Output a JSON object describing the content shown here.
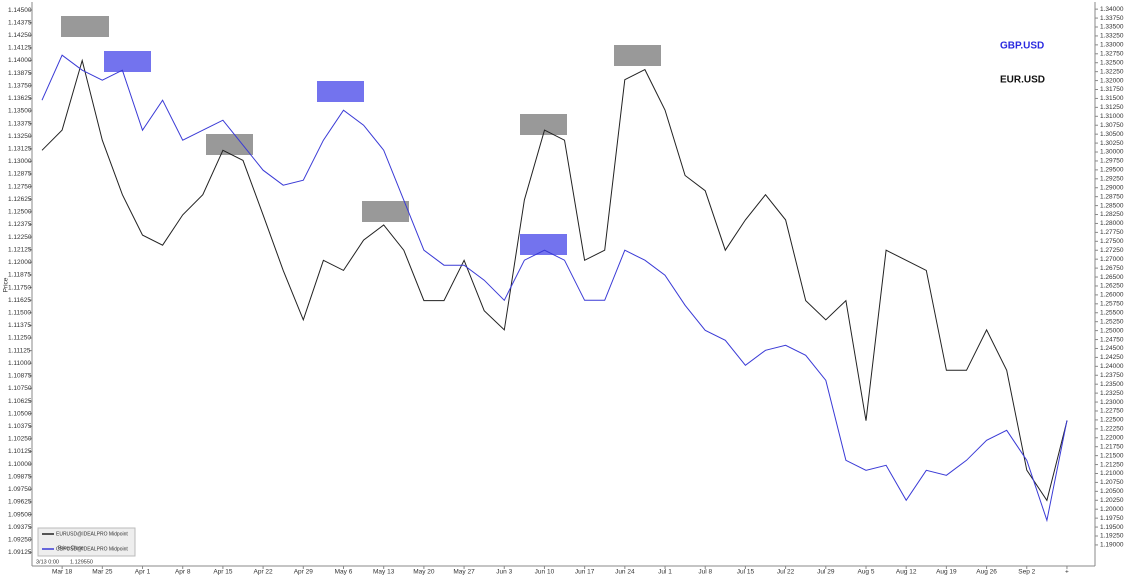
{
  "chart_data": {
    "type": "line",
    "annotations": [
      "GBP.USD",
      "EUR.USD"
    ],
    "y_label": "Price",
    "crosshair_labels": [
      "3/13 0:00",
      "1.129550"
    ],
    "legend_extra": "Price Close",
    "categories": [
      null,
      "Mar 18",
      null,
      "Mar 25",
      null,
      "Apr 1",
      null,
      "Apr 8",
      null,
      "Apr 15",
      null,
      "Apr 22",
      null,
      "Apr 29",
      null,
      "May 6",
      null,
      "May 13",
      null,
      "May 20",
      null,
      "May 27",
      null,
      "Jun 3",
      null,
      "Jun 10",
      null,
      "Jun 17",
      null,
      "Jun 24",
      null,
      "Jul 1",
      null,
      "Jul 8",
      null,
      "Jul 15",
      null,
      "Jul 22",
      null,
      "Jul 29",
      null,
      "Aug 5",
      null,
      "Aug 12",
      null,
      "Aug 19",
      null,
      "Aug 26",
      null,
      "Sep 2",
      null,
      "+"
    ],
    "series": [
      {
        "name": "EURUSD@IDEALPRO Midpoint",
        "color": "#222222",
        "values": [
          1.1311,
          1.1331,
          1.14,
          1.1321,
          1.1267,
          1.1227,
          1.1217,
          1.1247,
          1.1267,
          1.1311,
          1.1301,
          1.1247,
          1.1192,
          1.1143,
          1.1202,
          1.1192,
          1.1222,
          1.1237,
          1.1212,
          1.1162,
          1.1162,
          1.1202,
          1.1152,
          1.1133,
          1.1262,
          1.1331,
          1.1321,
          1.1202,
          1.1212,
          1.1381,
          1.1391,
          1.1351,
          1.1286,
          1.1271,
          1.1212,
          1.1242,
          1.1267,
          1.1242,
          1.1162,
          1.1143,
          1.1162,
          1.1043,
          1.1212,
          1.1202,
          1.1192,
          1.1093,
          1.1093,
          1.1133,
          1.1093,
          1.0994,
          1.0964,
          1.1043
        ]
      },
      {
        "name": "GBPUSD@IDEALPRO Midpoint",
        "color": "#3a3ad6",
        "axis": "y2",
        "values": [
          1.3145,
          1.3271,
          1.3229,
          1.3201,
          1.3229,
          1.3061,
          1.3145,
          1.3033,
          1.3061,
          1.3089,
          1.3019,
          1.2949,
          1.2907,
          1.2921,
          1.3033,
          1.3117,
          1.3075,
          1.3005,
          1.2865,
          1.2725,
          1.2683,
          1.2683,
          1.2641,
          1.2585,
          1.2697,
          1.2725,
          1.2697,
          1.2585,
          1.2585,
          1.2725,
          1.2697,
          1.2655,
          1.2571,
          1.2501,
          1.2473,
          1.2403,
          1.2445,
          1.2459,
          1.2431,
          1.2361,
          1.2137,
          1.2109,
          1.2123,
          1.2025,
          1.2109,
          1.2095,
          1.2137,
          1.2193,
          1.2221,
          1.2137,
          1.1969,
          1.2249
        ]
      }
    ],
    "ylim": [
      1.0899,
      1.1458
    ],
    "yticks": [
      {
        "value": 1.145,
        "label": "1.14500"
      },
      {
        "value": 1.14375,
        "label": "1.14375"
      },
      {
        "value": 1.1425,
        "label": "1.14250"
      },
      {
        "value": 1.14125,
        "label": "1.14125"
      },
      {
        "value": 1.14,
        "label": "1.14000"
      },
      {
        "value": 1.13875,
        "label": "1.13875"
      },
      {
        "value": 1.1375,
        "label": "1.13750"
      },
      {
        "value": 1.13625,
        "label": "1.13625"
      },
      {
        "value": 1.135,
        "label": "1.13500"
      },
      {
        "value": 1.13375,
        "label": "1.13375"
      },
      {
        "value": 1.1325,
        "label": "1.13250"
      },
      {
        "value": 1.13125,
        "label": "1.13125"
      },
      {
        "value": 1.13,
        "label": "1.13000"
      },
      {
        "value": 1.12875,
        "label": "1.12875"
      },
      {
        "value": 1.1275,
        "label": "1.12750"
      },
      {
        "value": 1.12625,
        "label": "1.12625"
      },
      {
        "value": 1.125,
        "label": "1.12500"
      },
      {
        "value": 1.12375,
        "label": "1.12375"
      },
      {
        "value": 1.1225,
        "label": "1.12250"
      },
      {
        "value": 1.12125,
        "label": "1.12125"
      },
      {
        "value": 1.12,
        "label": "1.12000"
      },
      {
        "value": 1.11875,
        "label": "1.11875"
      },
      {
        "value": 1.1175,
        "label": "1.11750"
      },
      {
        "value": 1.11625,
        "label": "1.11625"
      },
      {
        "value": 1.115,
        "label": "1.11500"
      },
      {
        "value": 1.11375,
        "label": "1.11375"
      },
      {
        "value": 1.1125,
        "label": "1.11250"
      },
      {
        "value": 1.11125,
        "label": "1.11125"
      },
      {
        "value": 1.11,
        "label": "1.11000"
      },
      {
        "value": 1.10875,
        "label": "1.10875"
      },
      {
        "value": 1.1075,
        "label": "1.10750"
      },
      {
        "value": 1.10625,
        "label": "1.10625"
      },
      {
        "value": 1.105,
        "label": "1.10500"
      },
      {
        "value": 1.10375,
        "label": "1.10375"
      },
      {
        "value": 1.1025,
        "label": "1.10250"
      },
      {
        "value": 1.10125,
        "label": "1.10125"
      },
      {
        "value": 1.1,
        "label": "1.10000"
      },
      {
        "value": 1.09875,
        "label": "1.09875"
      },
      {
        "value": 1.0975,
        "label": "1.09750"
      },
      {
        "value": 1.09625,
        "label": "1.09625"
      },
      {
        "value": 1.095,
        "label": "1.09500"
      },
      {
        "value": 1.09375,
        "label": "1.09375"
      },
      {
        "value": 1.0925,
        "label": "1.09250"
      },
      {
        "value": 1.09125,
        "label": "1.09125"
      }
    ],
    "y2lim": [
      1.1841,
      1.342
    ],
    "y2ticks": [
      {
        "value": 1.34,
        "label": "1.34000"
      },
      {
        "value": 1.3375,
        "label": "1.33750"
      },
      {
        "value": 1.335,
        "label": "1.33500"
      },
      {
        "value": 1.3325,
        "label": "1.33250"
      },
      {
        "value": 1.33,
        "label": "1.33000"
      },
      {
        "value": 1.3275,
        "label": "1.32750"
      },
      {
        "value": 1.325,
        "label": "1.32500"
      },
      {
        "value": 1.3225,
        "label": "1.32250"
      },
      {
        "value": 1.32,
        "label": "1.32000"
      },
      {
        "value": 1.3175,
        "label": "1.31750"
      },
      {
        "value": 1.315,
        "label": "1.31500"
      },
      {
        "value": 1.3125,
        "label": "1.31250"
      },
      {
        "value": 1.31,
        "label": "1.31000"
      },
      {
        "value": 1.3075,
        "label": "1.30750"
      },
      {
        "value": 1.305,
        "label": "1.30500"
      },
      {
        "value": 1.3025,
        "label": "1.30250"
      },
      {
        "value": 1.3,
        "label": "1.30000"
      },
      {
        "value": 1.2975,
        "label": "1.29750"
      },
      {
        "value": 1.295,
        "label": "1.29500"
      },
      {
        "value": 1.2925,
        "label": "1.29250"
      },
      {
        "value": 1.29,
        "label": "1.29000"
      },
      {
        "value": 1.2875,
        "label": "1.28750"
      },
      {
        "value": 1.285,
        "label": "1.28500"
      },
      {
        "value": 1.2825,
        "label": "1.28250"
      },
      {
        "value": 1.28,
        "label": "1.28000"
      },
      {
        "value": 1.2775,
        "label": "1.27750"
      },
      {
        "value": 1.275,
        "label": "1.27500"
      },
      {
        "value": 1.2725,
        "label": "1.27250"
      },
      {
        "value": 1.27,
        "label": "1.27000"
      },
      {
        "value": 1.2675,
        "label": "1.26750"
      },
      {
        "value": 1.265,
        "label": "1.26500"
      },
      {
        "value": 1.2625,
        "label": "1.26250"
      },
      {
        "value": 1.26,
        "label": "1.26000"
      },
      {
        "value": 1.2575,
        "label": "1.25750"
      },
      {
        "value": 1.255,
        "label": "1.25500"
      },
      {
        "value": 1.2525,
        "label": "1.25250"
      },
      {
        "value": 1.25,
        "label": "1.25000"
      },
      {
        "value": 1.2475,
        "label": "1.24750"
      },
      {
        "value": 1.245,
        "label": "1.24500"
      },
      {
        "value": 1.2425,
        "label": "1.24250"
      },
      {
        "value": 1.24,
        "label": "1.24000"
      },
      {
        "value": 1.2375,
        "label": "1.23750"
      },
      {
        "value": 1.235,
        "label": "1.23500"
      },
      {
        "value": 1.2325,
        "label": "1.23250"
      },
      {
        "value": 1.23,
        "label": "1.23000"
      },
      {
        "value": 1.2275,
        "label": "1.22750"
      },
      {
        "value": 1.225,
        "label": "1.22500"
      },
      {
        "value": 1.2225,
        "label": "1.22250"
      },
      {
        "value": 1.22,
        "label": "1.22000"
      },
      {
        "value": 1.2175,
        "label": "1.21750"
      },
      {
        "value": 1.215,
        "label": "1.21500"
      },
      {
        "value": 1.2125,
        "label": "1.21250"
      },
      {
        "value": 1.21,
        "label": "1.21000"
      },
      {
        "value": 1.2075,
        "label": "1.20750"
      },
      {
        "value": 1.205,
        "label": "1.20500"
      },
      {
        "value": 1.2025,
        "label": "1.20250"
      },
      {
        "value": 1.2,
        "label": "1.20000"
      },
      {
        "value": 1.1975,
        "label": "1.19750"
      },
      {
        "value": 1.195,
        "label": "1.19500"
      },
      {
        "value": 1.1925,
        "label": "1.19250"
      },
      {
        "value": 1.19,
        "label": "1.19000"
      }
    ]
  }
}
